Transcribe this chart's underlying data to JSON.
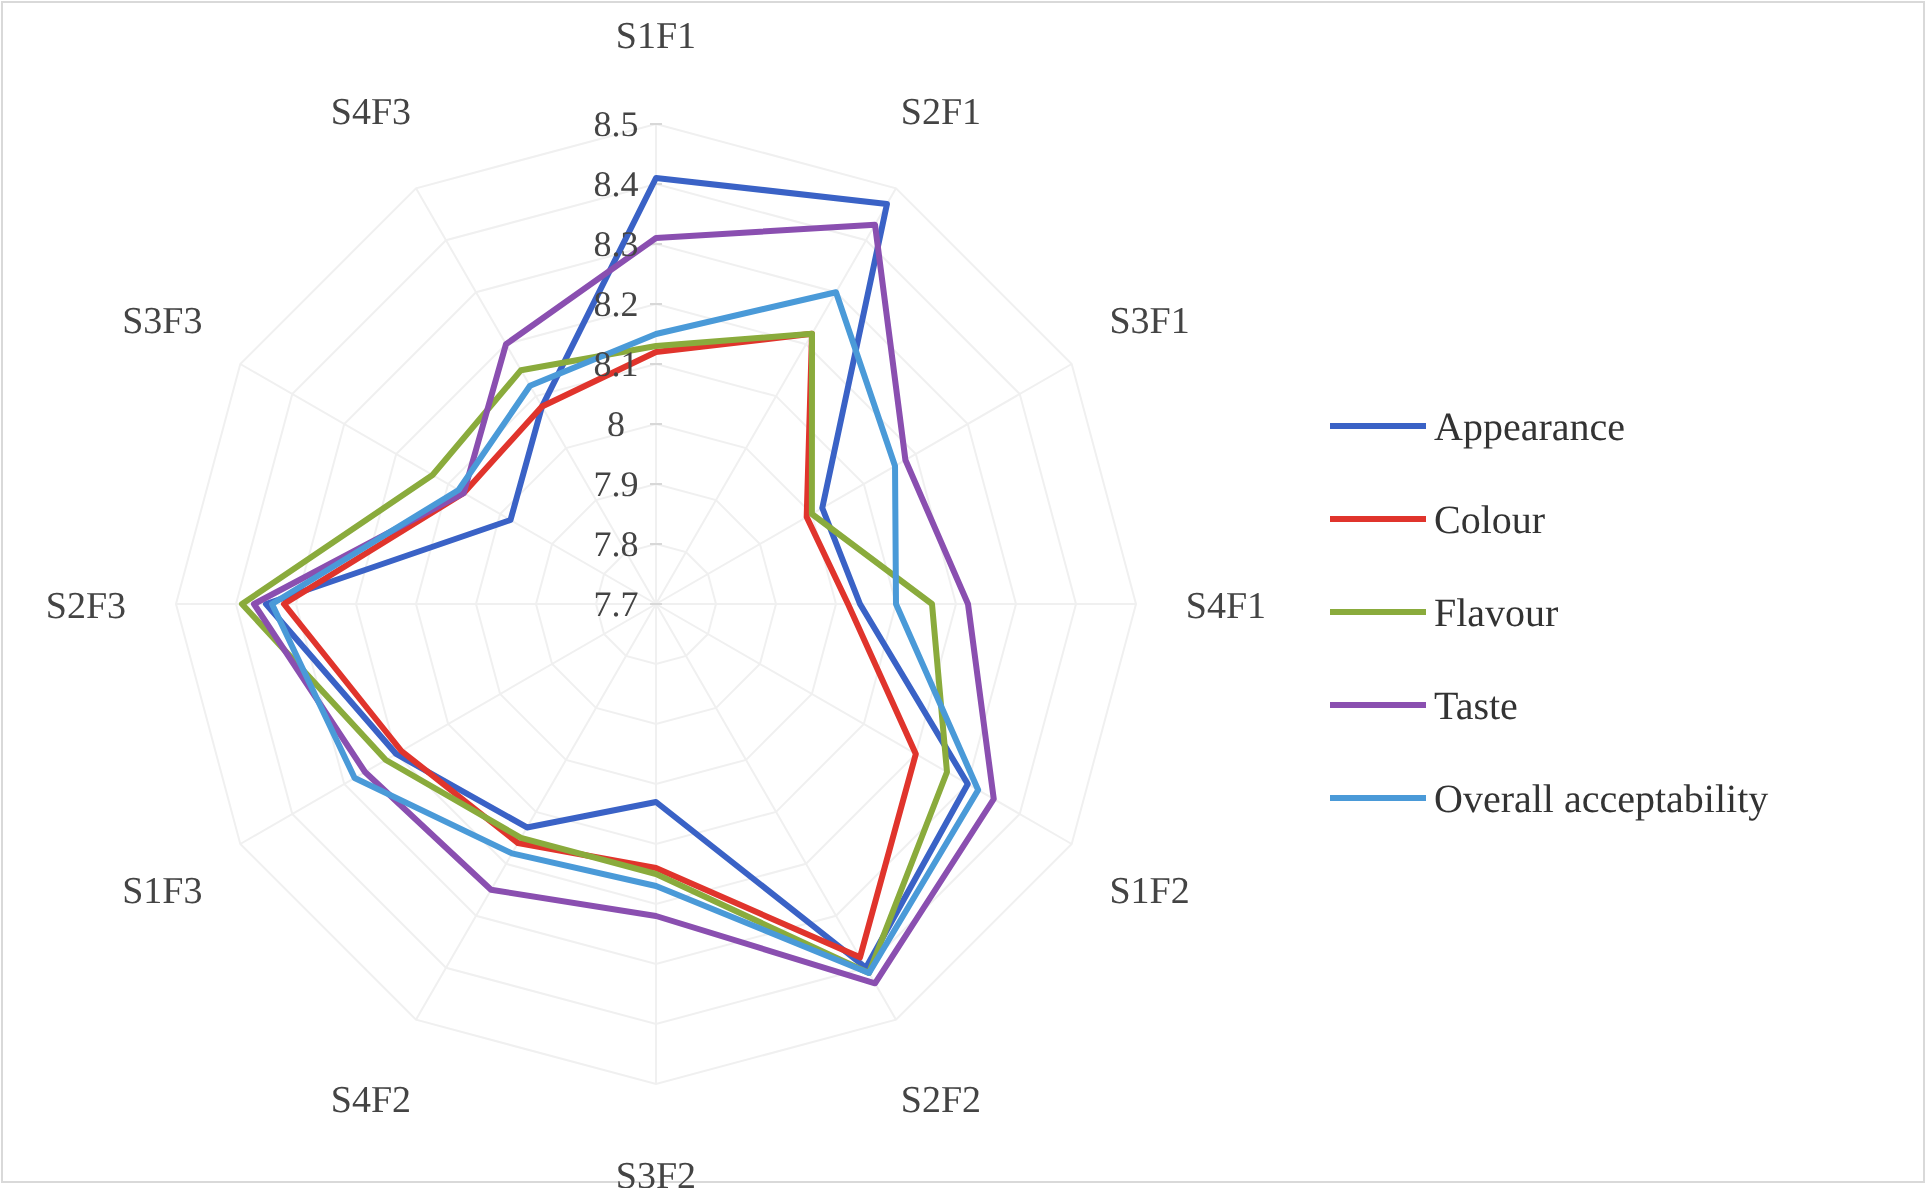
{
  "chart_data": {
    "type": "radar",
    "categories": [
      "S1F1",
      "S2F1",
      "S3F1",
      "S4F1",
      "S1F2",
      "S2F2",
      "S3F2",
      "S4F2",
      "S1F3",
      "S2F3",
      "S3F3",
      "S4F3"
    ],
    "series": [
      {
        "name": "Appearance",
        "color": "#3a62c6",
        "values": [
          8.41,
          8.47,
          8.02,
          8.04,
          8.3,
          8.4,
          8.03,
          8.13,
          8.2,
          8.35,
          7.98,
          8.08
        ]
      },
      {
        "name": "Colour",
        "color": "#e0342c",
        "values": [
          8.12,
          8.22,
          7.99,
          8.02,
          8.2,
          8.38,
          8.14,
          8.16,
          8.19,
          8.32,
          8.07,
          8.08
        ]
      },
      {
        "name": "Flavour",
        "color": "#8aab3c",
        "values": [
          8.13,
          8.22,
          8.0,
          8.16,
          8.26,
          8.41,
          8.15,
          8.15,
          8.22,
          8.39,
          8.13,
          8.15
        ]
      },
      {
        "name": "Taste",
        "color": "#8a4fb0",
        "values": [
          8.31,
          8.43,
          8.18,
          8.22,
          8.35,
          8.43,
          8.22,
          8.25,
          8.26,
          8.37,
          8.07,
          8.2
        ]
      },
      {
        "name": "Overall acceptability",
        "color": "#4a9ad8",
        "values": [
          8.15,
          8.3,
          8.16,
          8.1,
          8.32,
          8.41,
          8.17,
          8.18,
          8.28,
          8.34,
          8.08,
          8.12
        ]
      }
    ],
    "ylim": [
      7.7,
      8.5
    ],
    "yticks": [
      7.7,
      7.8,
      7.9,
      8,
      8.1,
      8.2,
      8.3,
      8.4,
      8.5
    ],
    "grid": true,
    "legend": "right"
  }
}
